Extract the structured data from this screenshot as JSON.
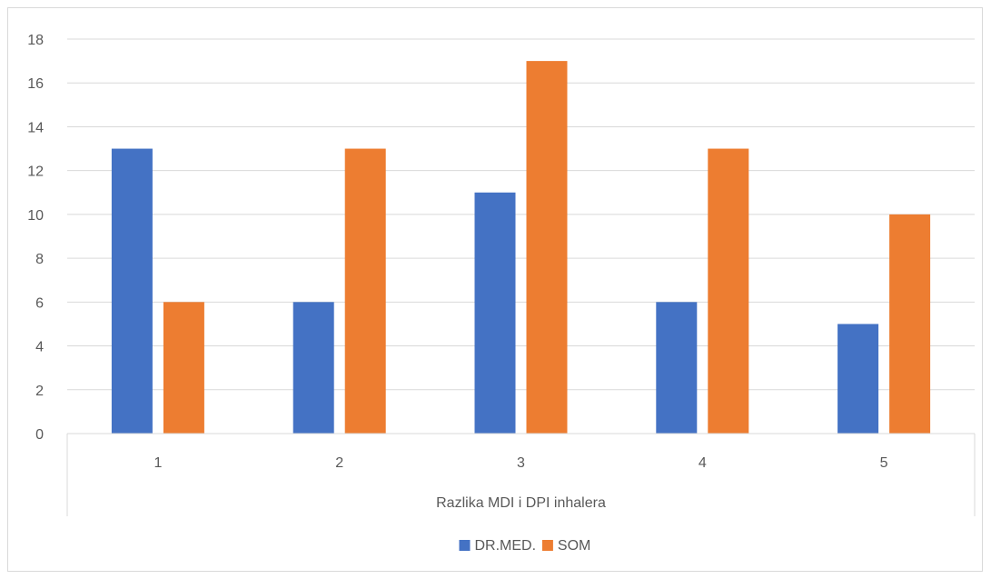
{
  "chart_data": {
    "type": "bar",
    "categories": [
      "1",
      "2",
      "3",
      "4",
      "5"
    ],
    "series": [
      {
        "name": "DR.MED.",
        "values": [
          13,
          6,
          11,
          6,
          5
        ],
        "color": "#4472C4"
      },
      {
        "name": "SOM",
        "values": [
          6,
          13,
          17,
          13,
          10
        ],
        "color": "#ED7D31"
      }
    ],
    "xlabel": "Razlika MDI i DPI inhalera",
    "ylabel": "",
    "ylim": [
      0,
      18
    ],
    "yticks": [
      0,
      2,
      4,
      6,
      8,
      10,
      12,
      14,
      16,
      18
    ],
    "grid": true,
    "legend_position": "bottom",
    "gridline_color": "#d9d9d9",
    "text_color": "#595959"
  }
}
